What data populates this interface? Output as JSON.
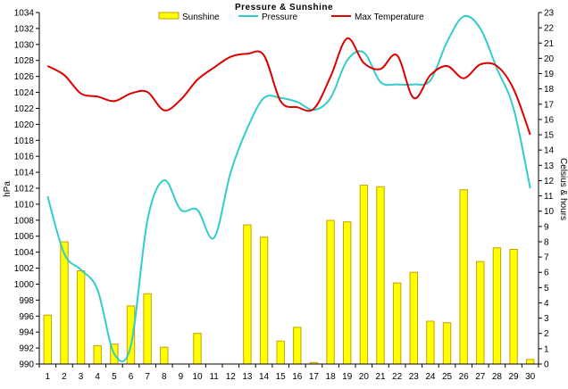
{
  "chart_data": {
    "type": "bar",
    "title": "Pressure & Sunshine",
    "x": [
      1,
      2,
      3,
      4,
      5,
      6,
      7,
      8,
      9,
      10,
      11,
      12,
      13,
      14,
      15,
      16,
      17,
      18,
      19,
      20,
      21,
      22,
      23,
      24,
      25,
      26,
      27,
      28,
      29,
      30
    ],
    "left_axis": {
      "label": "hPa",
      "range": [
        990,
        1034
      ],
      "ticks": [
        990,
        992,
        994,
        996,
        998,
        1000,
        1002,
        1004,
        1006,
        1008,
        1010,
        1012,
        1014,
        1016,
        1018,
        1020,
        1022,
        1024,
        1026,
        1028,
        1030,
        1032,
        1034
      ]
    },
    "right_axis": {
      "label": "Celsius & hours",
      "range": [
        0,
        23
      ],
      "ticks": [
        0,
        1,
        2,
        3,
        4,
        5,
        6,
        7,
        8,
        9,
        10,
        11,
        12,
        13,
        14,
        15,
        16,
        17,
        18,
        19,
        20,
        21,
        22,
        23
      ]
    },
    "grid": false,
    "legend": "top",
    "series": [
      {
        "name": "Sunshine",
        "type": "bar",
        "axis": "right",
        "color": "#ffff00",
        "border": "#c8a000",
        "values": [
          3.2,
          8.0,
          6.1,
          1.2,
          1.3,
          3.8,
          4.6,
          1.1,
          0,
          2.0,
          0,
          0,
          9.1,
          8.3,
          1.5,
          2.4,
          0.1,
          9.4,
          9.3,
          11.7,
          11.6,
          5.3,
          6.0,
          2.8,
          2.7,
          11.4,
          6.7,
          7.6,
          7.5,
          0.3
        ]
      },
      {
        "name": "Pressure",
        "type": "line",
        "axis": "left",
        "color": "#33cccc",
        "values": [
          1011,
          1003.8,
          1001.8,
          999.3,
          991.3,
          992.3,
          1008,
          1013,
          1009.3,
          1009.3,
          1005.8,
          1014,
          1019.5,
          1023.3,
          1023.3,
          1022.8,
          1021.8,
          1023.3,
          1028,
          1029,
          1025.3,
          1025,
          1025,
          1025.5,
          1030.3,
          1033.5,
          1032,
          1027,
          1022,
          1012
        ]
      },
      {
        "name": "Max Temperature",
        "type": "line",
        "axis": "right",
        "color": "#dd0000",
        "values": [
          19.5,
          18.9,
          17.7,
          17.5,
          17.2,
          17.7,
          17.8,
          16.6,
          17.3,
          18.6,
          19.4,
          20.1,
          20.3,
          20.2,
          17.2,
          16.8,
          16.7,
          18.8,
          21.3,
          19.7,
          19.3,
          20.2,
          17.4,
          18.9,
          19.5,
          18.7,
          19.6,
          19.5,
          18.0,
          15.0
        ]
      }
    ]
  }
}
